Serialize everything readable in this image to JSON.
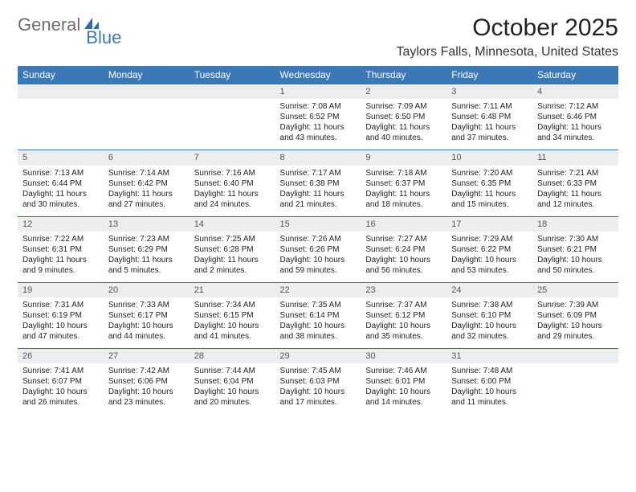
{
  "logo": {
    "part1": "General",
    "part2": "Blue"
  },
  "title": "October 2025",
  "location": "Taylors Falls, Minnesota, United States",
  "day_headers": [
    "Sunday",
    "Monday",
    "Tuesday",
    "Wednesday",
    "Thursday",
    "Friday",
    "Saturday"
  ],
  "colors": {
    "header_bg": "#3a79b7",
    "header_text": "#ffffff",
    "daynum_bg": "#ecedee",
    "border": "#3a6fa5",
    "logo_gray": "#6d6d6d",
    "logo_blue": "#3a79b7"
  },
  "weeks": [
    [
      {
        "n": "",
        "sr": "",
        "ss": "",
        "d1": "",
        "d2": ""
      },
      {
        "n": "",
        "sr": "",
        "ss": "",
        "d1": "",
        "d2": ""
      },
      {
        "n": "",
        "sr": "",
        "ss": "",
        "d1": "",
        "d2": ""
      },
      {
        "n": "1",
        "sr": "Sunrise: 7:08 AM",
        "ss": "Sunset: 6:52 PM",
        "d1": "Daylight: 11 hours",
        "d2": "and 43 minutes."
      },
      {
        "n": "2",
        "sr": "Sunrise: 7:09 AM",
        "ss": "Sunset: 6:50 PM",
        "d1": "Daylight: 11 hours",
        "d2": "and 40 minutes."
      },
      {
        "n": "3",
        "sr": "Sunrise: 7:11 AM",
        "ss": "Sunset: 6:48 PM",
        "d1": "Daylight: 11 hours",
        "d2": "and 37 minutes."
      },
      {
        "n": "4",
        "sr": "Sunrise: 7:12 AM",
        "ss": "Sunset: 6:46 PM",
        "d1": "Daylight: 11 hours",
        "d2": "and 34 minutes."
      }
    ],
    [
      {
        "n": "5",
        "sr": "Sunrise: 7:13 AM",
        "ss": "Sunset: 6:44 PM",
        "d1": "Daylight: 11 hours",
        "d2": "and 30 minutes."
      },
      {
        "n": "6",
        "sr": "Sunrise: 7:14 AM",
        "ss": "Sunset: 6:42 PM",
        "d1": "Daylight: 11 hours",
        "d2": "and 27 minutes."
      },
      {
        "n": "7",
        "sr": "Sunrise: 7:16 AM",
        "ss": "Sunset: 6:40 PM",
        "d1": "Daylight: 11 hours",
        "d2": "and 24 minutes."
      },
      {
        "n": "8",
        "sr": "Sunrise: 7:17 AM",
        "ss": "Sunset: 6:38 PM",
        "d1": "Daylight: 11 hours",
        "d2": "and 21 minutes."
      },
      {
        "n": "9",
        "sr": "Sunrise: 7:18 AM",
        "ss": "Sunset: 6:37 PM",
        "d1": "Daylight: 11 hours",
        "d2": "and 18 minutes."
      },
      {
        "n": "10",
        "sr": "Sunrise: 7:20 AM",
        "ss": "Sunset: 6:35 PM",
        "d1": "Daylight: 11 hours",
        "d2": "and 15 minutes."
      },
      {
        "n": "11",
        "sr": "Sunrise: 7:21 AM",
        "ss": "Sunset: 6:33 PM",
        "d1": "Daylight: 11 hours",
        "d2": "and 12 minutes."
      }
    ],
    [
      {
        "n": "12",
        "sr": "Sunrise: 7:22 AM",
        "ss": "Sunset: 6:31 PM",
        "d1": "Daylight: 11 hours",
        "d2": "and 9 minutes."
      },
      {
        "n": "13",
        "sr": "Sunrise: 7:23 AM",
        "ss": "Sunset: 6:29 PM",
        "d1": "Daylight: 11 hours",
        "d2": "and 5 minutes."
      },
      {
        "n": "14",
        "sr": "Sunrise: 7:25 AM",
        "ss": "Sunset: 6:28 PM",
        "d1": "Daylight: 11 hours",
        "d2": "and 2 minutes."
      },
      {
        "n": "15",
        "sr": "Sunrise: 7:26 AM",
        "ss": "Sunset: 6:26 PM",
        "d1": "Daylight: 10 hours",
        "d2": "and 59 minutes."
      },
      {
        "n": "16",
        "sr": "Sunrise: 7:27 AM",
        "ss": "Sunset: 6:24 PM",
        "d1": "Daylight: 10 hours",
        "d2": "and 56 minutes."
      },
      {
        "n": "17",
        "sr": "Sunrise: 7:29 AM",
        "ss": "Sunset: 6:22 PM",
        "d1": "Daylight: 10 hours",
        "d2": "and 53 minutes."
      },
      {
        "n": "18",
        "sr": "Sunrise: 7:30 AM",
        "ss": "Sunset: 6:21 PM",
        "d1": "Daylight: 10 hours",
        "d2": "and 50 minutes."
      }
    ],
    [
      {
        "n": "19",
        "sr": "Sunrise: 7:31 AM",
        "ss": "Sunset: 6:19 PM",
        "d1": "Daylight: 10 hours",
        "d2": "and 47 minutes."
      },
      {
        "n": "20",
        "sr": "Sunrise: 7:33 AM",
        "ss": "Sunset: 6:17 PM",
        "d1": "Daylight: 10 hours",
        "d2": "and 44 minutes."
      },
      {
        "n": "21",
        "sr": "Sunrise: 7:34 AM",
        "ss": "Sunset: 6:15 PM",
        "d1": "Daylight: 10 hours",
        "d2": "and 41 minutes."
      },
      {
        "n": "22",
        "sr": "Sunrise: 7:35 AM",
        "ss": "Sunset: 6:14 PM",
        "d1": "Daylight: 10 hours",
        "d2": "and 38 minutes."
      },
      {
        "n": "23",
        "sr": "Sunrise: 7:37 AM",
        "ss": "Sunset: 6:12 PM",
        "d1": "Daylight: 10 hours",
        "d2": "and 35 minutes."
      },
      {
        "n": "24",
        "sr": "Sunrise: 7:38 AM",
        "ss": "Sunset: 6:10 PM",
        "d1": "Daylight: 10 hours",
        "d2": "and 32 minutes."
      },
      {
        "n": "25",
        "sr": "Sunrise: 7:39 AM",
        "ss": "Sunset: 6:09 PM",
        "d1": "Daylight: 10 hours",
        "d2": "and 29 minutes."
      }
    ],
    [
      {
        "n": "26",
        "sr": "Sunrise: 7:41 AM",
        "ss": "Sunset: 6:07 PM",
        "d1": "Daylight: 10 hours",
        "d2": "and 26 minutes."
      },
      {
        "n": "27",
        "sr": "Sunrise: 7:42 AM",
        "ss": "Sunset: 6:06 PM",
        "d1": "Daylight: 10 hours",
        "d2": "and 23 minutes."
      },
      {
        "n": "28",
        "sr": "Sunrise: 7:44 AM",
        "ss": "Sunset: 6:04 PM",
        "d1": "Daylight: 10 hours",
        "d2": "and 20 minutes."
      },
      {
        "n": "29",
        "sr": "Sunrise: 7:45 AM",
        "ss": "Sunset: 6:03 PM",
        "d1": "Daylight: 10 hours",
        "d2": "and 17 minutes."
      },
      {
        "n": "30",
        "sr": "Sunrise: 7:46 AM",
        "ss": "Sunset: 6:01 PM",
        "d1": "Daylight: 10 hours",
        "d2": "and 14 minutes."
      },
      {
        "n": "31",
        "sr": "Sunrise: 7:48 AM",
        "ss": "Sunset: 6:00 PM",
        "d1": "Daylight: 10 hours",
        "d2": "and 11 minutes."
      },
      {
        "n": "",
        "sr": "",
        "ss": "",
        "d1": "",
        "d2": ""
      }
    ]
  ]
}
